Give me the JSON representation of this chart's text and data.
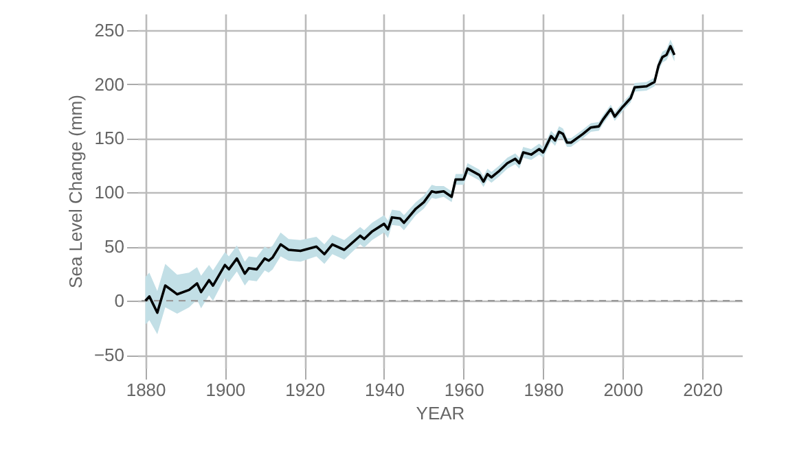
{
  "chart_data": {
    "type": "line",
    "xlabel": "YEAR",
    "ylabel": "Sea Level Change (mm)",
    "x": [
      1880,
      1881,
      1883,
      1885,
      1888,
      1891,
      1893,
      1894,
      1896,
      1897,
      1900,
      1901,
      1903,
      1905,
      1906,
      1908,
      1910,
      1911,
      1912,
      1914,
      1916,
      1919,
      1923,
      1925,
      1927,
      1930,
      1934,
      1935,
      1937,
      1940,
      1941,
      1942,
      1944,
      1945,
      1948,
      1950,
      1952,
      1953,
      1955,
      1957,
      1958,
      1960,
      1961,
      1964,
      1965,
      1966,
      1967,
      1969,
      1971,
      1973,
      1974,
      1975,
      1977,
      1979,
      1980,
      1982,
      1983,
      1984,
      1985,
      1986,
      1987,
      1990,
      1992,
      1994,
      1995,
      1997,
      1998,
      2000,
      2002,
      2003,
      2006,
      2008,
      2009,
      2010,
      2011,
      2012,
      2013
    ],
    "series": [
      {
        "color": "#000000",
        "values": [
          0,
          4,
          -11,
          14,
          6,
          10,
          16,
          8,
          19,
          14,
          33,
          29,
          39,
          25,
          30,
          29,
          39,
          37,
          40,
          52,
          47,
          46,
          50,
          43,
          52,
          47,
          60,
          57,
          64,
          71,
          66,
          77,
          76,
          72,
          85,
          91,
          101,
          100,
          101,
          96,
          112,
          112,
          122,
          116,
          110,
          117,
          114,
          120,
          127,
          131,
          127,
          137,
          135,
          140,
          137,
          152,
          148,
          156,
          154,
          146,
          146,
          154,
          160,
          161,
          167,
          177,
          170,
          179,
          187,
          197,
          198,
          202,
          217,
          225,
          227,
          235,
          227
        ],
        "lower": [
          -22,
          -18,
          -31,
          -6,
          -12,
          -6,
          1,
          -7,
          5,
          0,
          21,
          17,
          27,
          14,
          19,
          18,
          28,
          26,
          29,
          41,
          37,
          36,
          41,
          34,
          43,
          38,
          52,
          49,
          56,
          63,
          58,
          70,
          69,
          65,
          79,
          85,
          95,
          94,
          96,
          91,
          107,
          107,
          117,
          111,
          105,
          112,
          109,
          115,
          122,
          126,
          122,
          132,
          130,
          135,
          132,
          147,
          143,
          151,
          149,
          142,
          142,
          150,
          156,
          157,
          163,
          173,
          166,
          175,
          183,
          193,
          194,
          198,
          212,
          220,
          222,
          229,
          221
        ],
        "upper": [
          22,
          26,
          9,
          34,
          24,
          26,
          31,
          23,
          33,
          28,
          45,
          41,
          51,
          36,
          41,
          40,
          50,
          48,
          51,
          63,
          57,
          56,
          59,
          52,
          61,
          56,
          68,
          65,
          72,
          79,
          74,
          84,
          83,
          79,
          91,
          97,
          107,
          106,
          106,
          101,
          117,
          117,
          127,
          121,
          115,
          122,
          119,
          125,
          132,
          136,
          132,
          142,
          140,
          145,
          142,
          157,
          153,
          161,
          159,
          150,
          150,
          158,
          164,
          165,
          171,
          181,
          174,
          183,
          191,
          201,
          202,
          206,
          222,
          230,
          232,
          241,
          233
        ]
      }
    ],
    "xlim": [
      1878,
      2030
    ],
    "xticks": [
      1880,
      1900,
      1920,
      1940,
      1960,
      1980,
      2000,
      2020
    ],
    "ylim": [
      -62,
      265
    ],
    "yticks": [
      -50,
      0,
      50,
      100,
      150,
      200,
      250
    ],
    "grid": true,
    "marker": "none",
    "line_style": "solid",
    "ref_lines": [
      {
        "axis": "y",
        "value": 0,
        "color": "#999999",
        "line_style": "dashed"
      }
    ]
  }
}
